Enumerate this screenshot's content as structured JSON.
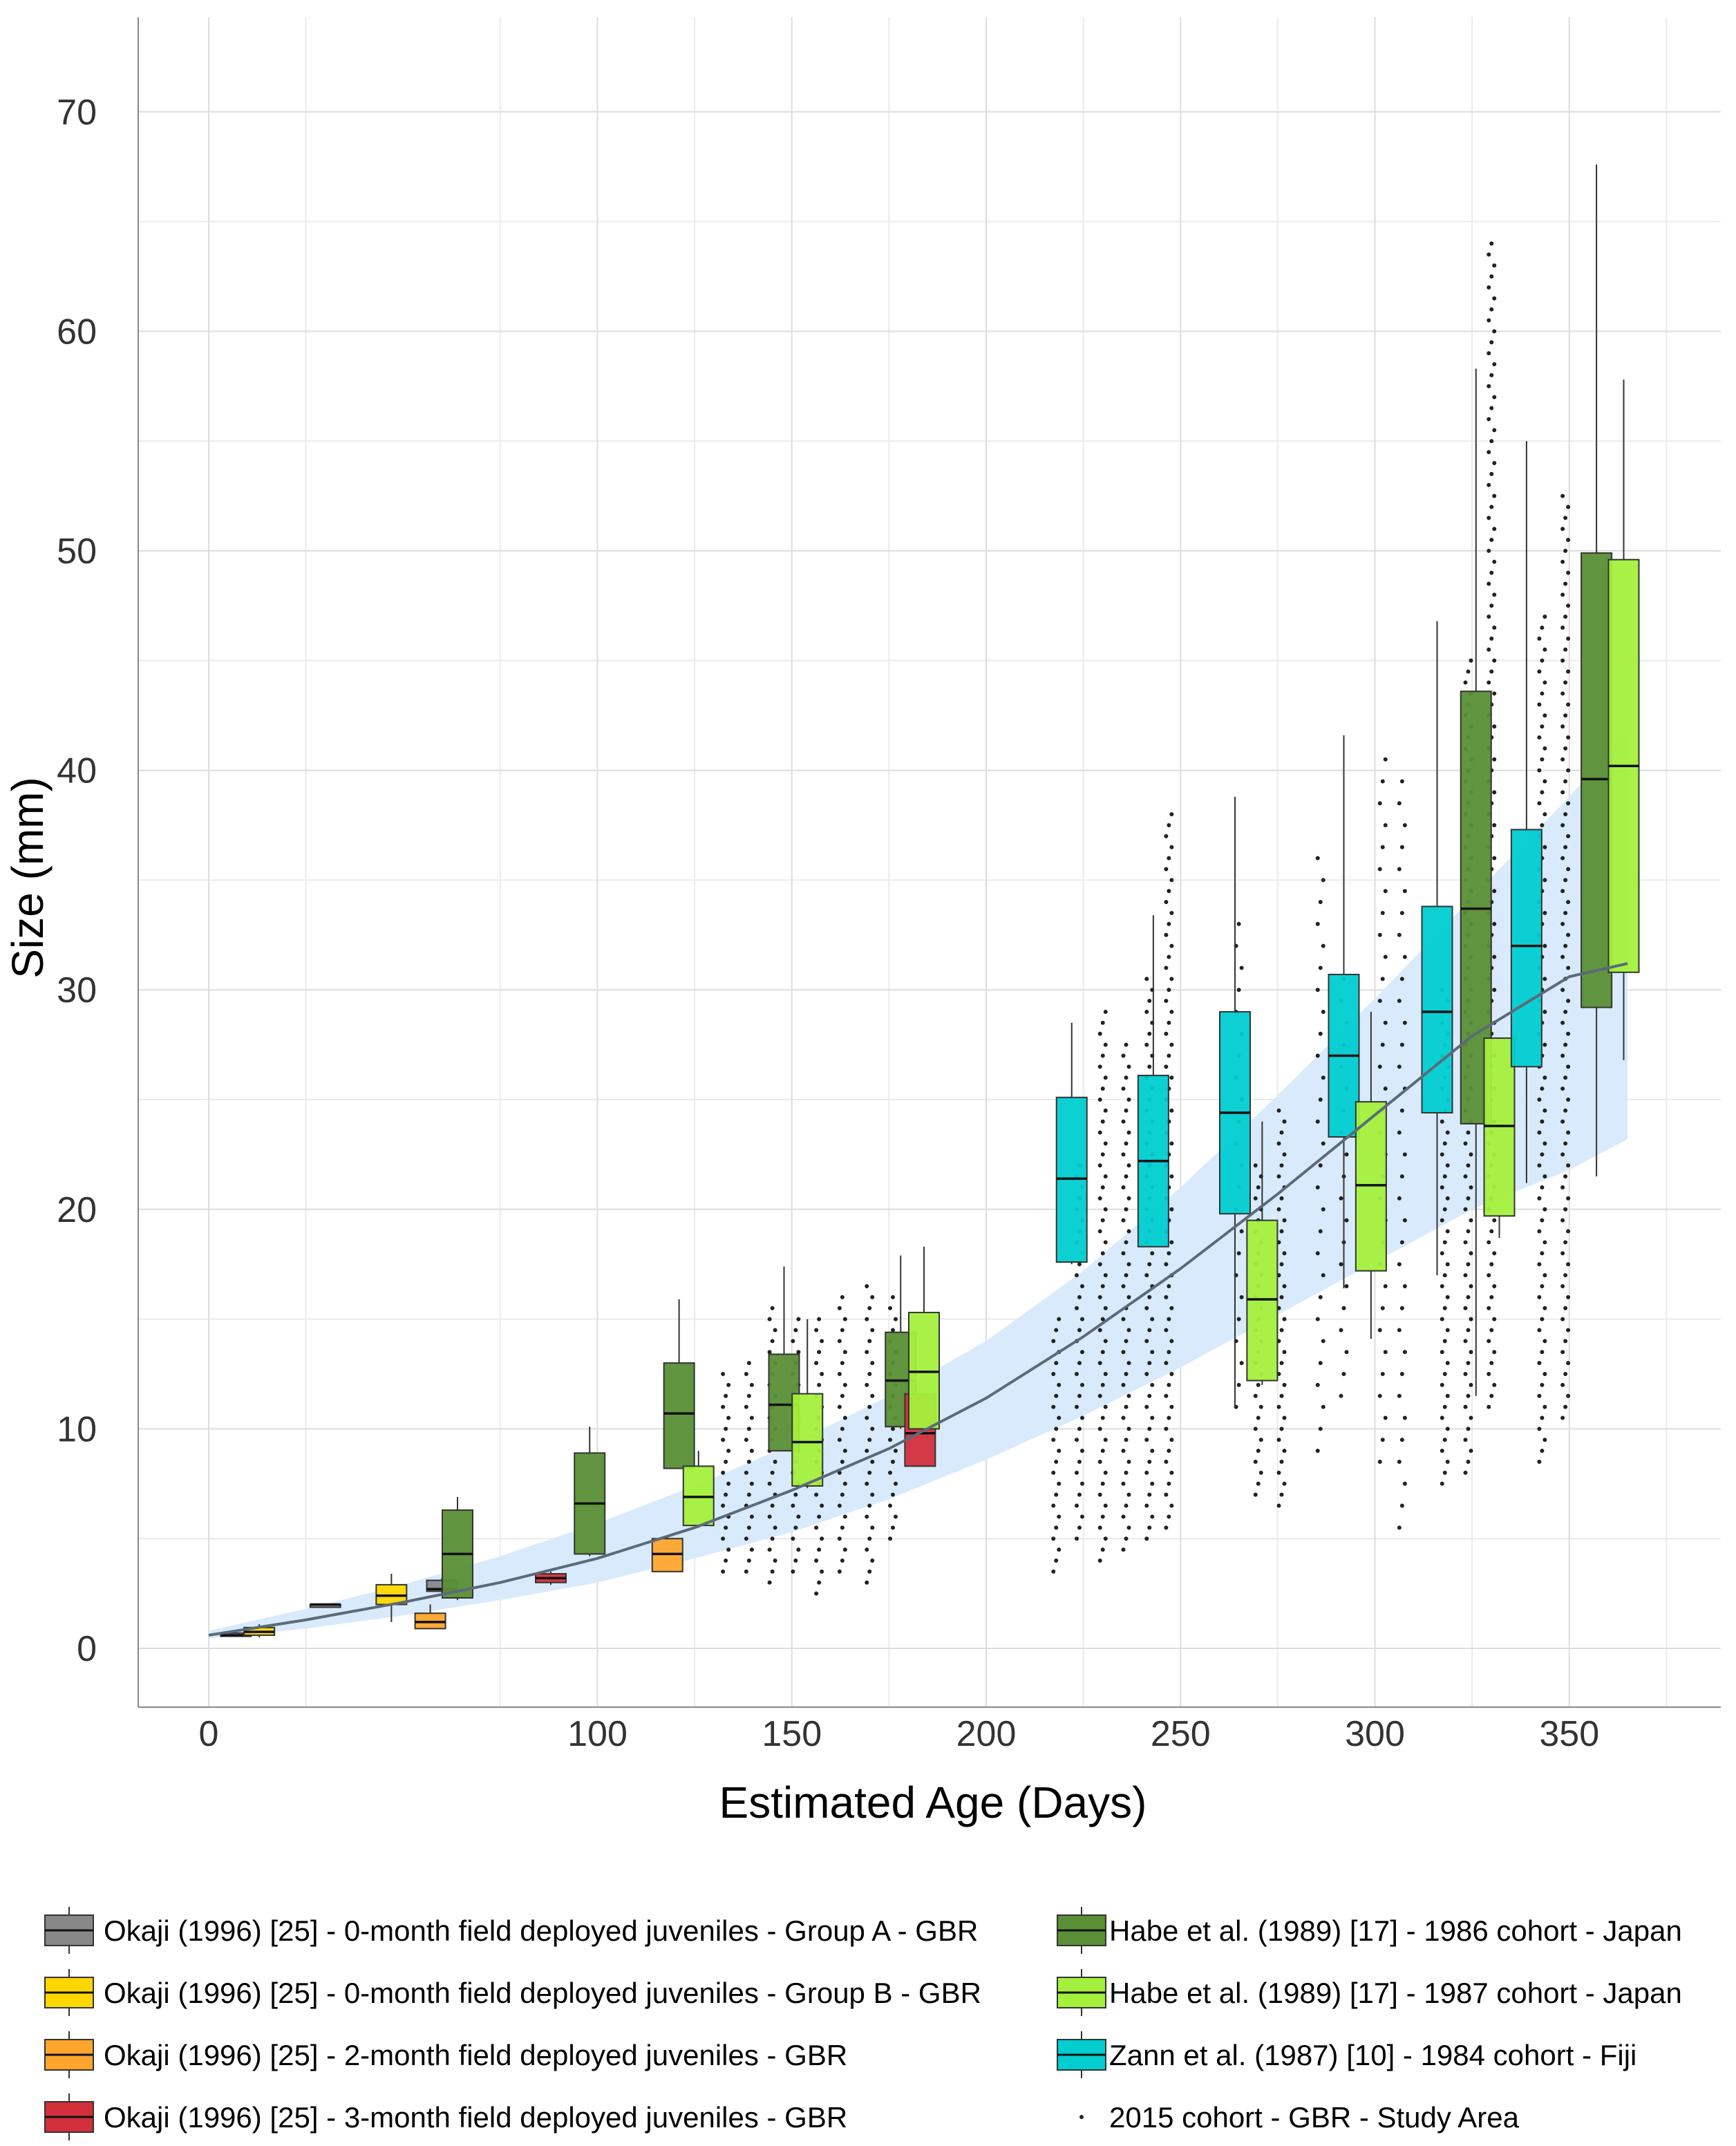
{
  "chart_data": {
    "type": "box",
    "xlabel": "Estimated Age (Days)",
    "ylabel": "Size (mm)",
    "xlim": [
      -18,
      388
    ],
    "ylim": [
      -3.3,
      73.5
    ],
    "x_ticks": [
      0,
      100,
      150,
      200,
      250,
      300,
      350
    ],
    "y_ticks": [
      0,
      10,
      20,
      30,
      40,
      50,
      60,
      70
    ],
    "legend_position": "bottom",
    "colors": {
      "okaji_a": "#888888",
      "okaji_b": "#FFD700",
      "okaji_2m": "#FFA52C",
      "okaji_3m": "#D32F3C",
      "habe_1986": "#5A8F35",
      "habe_1987": "#A4F03C",
      "zann_1984": "#00CED1",
      "trend_line": "#5B6A79",
      "ci_band": "#D6E9FC",
      "points": "#222222"
    },
    "legend": [
      {
        "key": "okaji_a",
        "label": "Okaji (1996) [25] - 0-month field deployed juveniles - Group A - GBR"
      },
      {
        "key": "okaji_b",
        "label": "Okaji (1996) [25] - 0-month field deployed juveniles - Group B - GBR"
      },
      {
        "key": "okaji_2m",
        "label": "Okaji (1996) [25] - 2-month field deployed juveniles - GBR"
      },
      {
        "key": "okaji_3m",
        "label": "Okaji (1996) [25] - 3-month field deployed juveniles - GBR"
      },
      {
        "key": "habe_1986",
        "label": "Habe et al. (1989) [17] - 1986 cohort - Japan"
      },
      {
        "key": "habe_1987",
        "label": "Habe et al. (1989) [17] - 1987 cohort - Japan"
      },
      {
        "key": "zann_1984",
        "label": "Zann et al. (1987) [10] - 1984 cohort - Fiji"
      },
      {
        "key": "points",
        "label": "2015 cohort - GBR - Study Area"
      }
    ],
    "boxes": [
      {
        "series": "okaji_a",
        "x": 7,
        "min": 0.55,
        "q1": 0.55,
        "median": 0.6,
        "q3": 0.7,
        "max": 0.75
      },
      {
        "series": "okaji_b",
        "x": 13,
        "min": 0.5,
        "q1": 0.6,
        "median": 0.75,
        "q3": 0.95,
        "max": 1.1
      },
      {
        "series": "okaji_a",
        "x": 30,
        "min": 2.0,
        "q1": 2.0,
        "median": 2.0,
        "q3": 2.0,
        "max": 2.0
      },
      {
        "series": "okaji_b",
        "x": 47,
        "min": 1.2,
        "q1": 2.0,
        "median": 2.4,
        "q3": 2.9,
        "max": 3.4
      },
      {
        "series": "okaji_2m",
        "x": 57,
        "min": 0.9,
        "q1": 0.9,
        "median": 1.2,
        "q3": 1.6,
        "max": 2.0
      },
      {
        "series": "okaji_a",
        "x": 60,
        "min": 2.4,
        "q1": 2.6,
        "median": 2.7,
        "q3": 3.1,
        "max": 3.2
      },
      {
        "series": "habe_1986",
        "x": 64,
        "min": 2.2,
        "q1": 2.3,
        "median": 4.3,
        "q3": 6.3,
        "max": 6.9
      },
      {
        "series": "okaji_3m",
        "x": 88,
        "min": 2.9,
        "q1": 3.0,
        "median": 3.2,
        "q3": 3.4,
        "max": 3.5
      },
      {
        "series": "habe_1986",
        "x": 98,
        "min": 4.2,
        "q1": 4.3,
        "median": 6.6,
        "q3": 8.9,
        "max": 10.1
      },
      {
        "series": "okaji_2m",
        "x": 118,
        "min": 3.5,
        "q1": 3.5,
        "median": 4.3,
        "q3": 5.0,
        "max": 5.1
      },
      {
        "series": "habe_1986",
        "x": 121,
        "min": 8.2,
        "q1": 8.2,
        "median": 10.7,
        "q3": 13.0,
        "max": 15.9
      },
      {
        "series": "habe_1987",
        "x": 126,
        "min": 5.5,
        "q1": 5.6,
        "median": 6.9,
        "q3": 8.3,
        "max": 9.0
      },
      {
        "series": "habe_1986",
        "x": 148,
        "min": 9.0,
        "q1": 9.0,
        "median": 11.1,
        "q3": 13.4,
        "max": 17.4
      },
      {
        "series": "habe_1987",
        "x": 154,
        "min": 7.3,
        "q1": 7.4,
        "median": 9.4,
        "q3": 11.6,
        "max": 15.0
      },
      {
        "series": "habe_1986",
        "x": 178,
        "min": 10.0,
        "q1": 10.1,
        "median": 12.2,
        "q3": 14.4,
        "max": 17.9
      },
      {
        "series": "okaji_3m",
        "x": 183,
        "min": 8.3,
        "q1": 8.3,
        "median": 9.8,
        "q3": 11.6,
        "max": 11.6
      },
      {
        "series": "habe_1987",
        "x": 184,
        "min": 10.0,
        "q1": 10.0,
        "median": 12.6,
        "q3": 15.3,
        "max": 18.3
      },
      {
        "series": "zann_1984",
        "x": 222,
        "min": 17.5,
        "q1": 17.6,
        "median": 21.4,
        "q3": 25.1,
        "max": 28.5
      },
      {
        "series": "zann_1984",
        "x": 243,
        "min": 18.3,
        "q1": 18.3,
        "median": 22.2,
        "q3": 26.1,
        "max": 33.4
      },
      {
        "series": "zann_1984",
        "x": 264,
        "min": 11.0,
        "q1": 19.8,
        "median": 24.4,
        "q3": 29.0,
        "max": 38.8
      },
      {
        "series": "habe_1987",
        "x": 271,
        "min": 12.0,
        "q1": 12.2,
        "median": 15.9,
        "q3": 19.5,
        "max": 24.0
      },
      {
        "series": "zann_1984",
        "x": 292,
        "min": 16.4,
        "q1": 23.3,
        "median": 27.0,
        "q3": 30.7,
        "max": 41.6
      },
      {
        "series": "habe_1987",
        "x": 299,
        "min": 14.1,
        "q1": 17.2,
        "median": 21.1,
        "q3": 24.9,
        "max": 29.0
      },
      {
        "series": "zann_1984",
        "x": 316,
        "min": 17.0,
        "q1": 24.4,
        "median": 29.0,
        "q3": 33.8,
        "max": 46.8
      },
      {
        "series": "habe_1986",
        "x": 326,
        "min": 11.5,
        "q1": 23.9,
        "median": 33.7,
        "q3": 43.6,
        "max": 58.3
      },
      {
        "series": "habe_1987",
        "x": 332,
        "min": 18.7,
        "q1": 19.7,
        "median": 23.8,
        "q3": 27.8,
        "max": 27.8
      },
      {
        "series": "zann_1984",
        "x": 339,
        "min": 21.2,
        "q1": 26.5,
        "median": 32.0,
        "q3": 37.3,
        "max": 55.0
      },
      {
        "series": "habe_1986",
        "x": 357,
        "min": 21.5,
        "q1": 29.2,
        "median": 39.6,
        "q3": 49.9,
        "max": 67.6
      },
      {
        "series": "habe_1987",
        "x": 364,
        "min": 26.8,
        "q1": 30.8,
        "median": 40.2,
        "q3": 49.6,
        "max": 57.8
      }
    ],
    "point_clusters": [
      {
        "x": 133,
        "min": 3.5,
        "max": 12.5,
        "step": 0.5
      },
      {
        "x": 139,
        "min": 3.5,
        "max": 13.0,
        "step": 0.5
      },
      {
        "x": 145,
        "min": 3.0,
        "max": 15.5,
        "step": 0.5
      },
      {
        "x": 151,
        "min": 3.5,
        "max": 15.0,
        "step": 0.5
      },
      {
        "x": 157,
        "min": 2.5,
        "max": 15.0,
        "step": 0.5
      },
      {
        "x": 163,
        "min": 3.5,
        "max": 16.0,
        "step": 0.5
      },
      {
        "x": 170,
        "min": 3.0,
        "max": 16.5,
        "step": 0.5
      },
      {
        "x": 176,
        "min": 5.0,
        "max": 16.0,
        "step": 0.5
      },
      {
        "x": 218,
        "min": 3.5,
        "max": 15.0,
        "step": 0.5
      },
      {
        "x": 224,
        "min": 5.0,
        "max": 22.0,
        "step": 0.5
      },
      {
        "x": 230,
        "min": 4.0,
        "max": 29.0,
        "step": 0.5
      },
      {
        "x": 236,
        "min": 4.5,
        "max": 27.5,
        "step": 0.5
      },
      {
        "x": 242,
        "min": 5.0,
        "max": 30.5,
        "step": 0.5
      },
      {
        "x": 247,
        "min": 5.5,
        "max": 38.0,
        "step": 0.5
      },
      {
        "x": 265,
        "min": 11.0,
        "max": 33.0,
        "step": 1.0
      },
      {
        "x": 270,
        "min": 7.0,
        "max": 22.0,
        "step": 0.5
      },
      {
        "x": 276,
        "min": 6.5,
        "max": 24.5,
        "step": 0.5
      },
      {
        "x": 286,
        "min": 9.0,
        "max": 36.0,
        "step": 1.0
      },
      {
        "x": 292,
        "min": 11.5,
        "max": 31.0,
        "step": 1.0
      },
      {
        "x": 302,
        "min": 8.5,
        "max": 41.0,
        "step": 1.0
      },
      {
        "x": 307,
        "min": 5.5,
        "max": 40.0,
        "step": 1.0
      },
      {
        "x": 318,
        "min": 7.5,
        "max": 30.0,
        "step": 0.5
      },
      {
        "x": 324,
        "min": 8.0,
        "max": 45.0,
        "step": 0.5
      },
      {
        "x": 330,
        "min": 11.0,
        "max": 64.0,
        "step": 0.5
      },
      {
        "x": 343,
        "min": 8.5,
        "max": 47.0,
        "step": 0.5
      },
      {
        "x": 349,
        "min": 10.5,
        "max": 52.5,
        "step": 0.5
      }
    ],
    "trend_line": {
      "x": [
        0,
        25,
        50,
        75,
        100,
        125,
        150,
        175,
        200,
        225,
        250,
        275,
        300,
        325,
        350,
        365
      ],
      "y": [
        0.6,
        1.3,
        2.1,
        3.0,
        4.1,
        5.5,
        7.2,
        9.1,
        11.4,
        14.2,
        17.3,
        20.7,
        24.3,
        27.9,
        30.6,
        31.2
      ]
    },
    "ci_band": {
      "x": [
        0,
        25,
        50,
        75,
        100,
        125,
        150,
        175,
        200,
        225,
        250,
        275,
        300,
        325,
        350,
        365
      ],
      "upper": [
        0.8,
        1.8,
        2.9,
        4.2,
        5.7,
        7.4,
        9.3,
        11.5,
        14.0,
        17.2,
        21.0,
        25.2,
        29.6,
        34.2,
        38.8,
        41.8
      ],
      "lower": [
        0.45,
        0.9,
        1.5,
        2.2,
        3.0,
        4.1,
        5.3,
        6.8,
        8.6,
        10.6,
        12.8,
        15.2,
        17.6,
        20.0,
        21.8,
        23.2
      ]
    }
  }
}
